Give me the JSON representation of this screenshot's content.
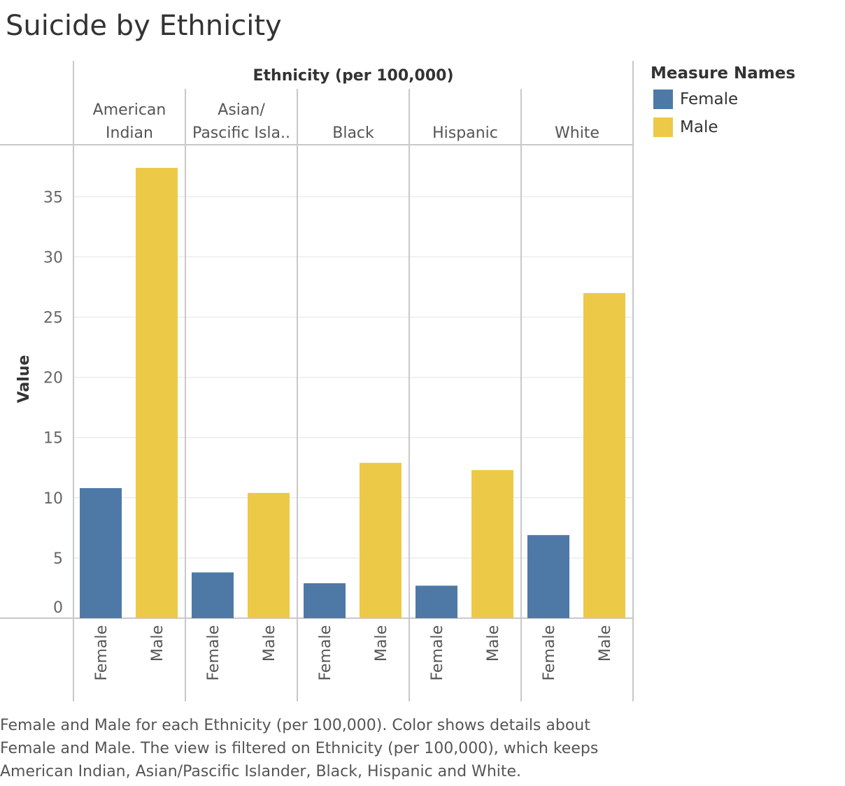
{
  "chart_data": {
    "type": "bar",
    "title": "Suicide by Ethnicity",
    "column_header": "Ethnicity (per 100,000)",
    "ylabel": "Value",
    "ylim": [
      0,
      38
    ],
    "yticks": [
      0,
      5,
      10,
      15,
      20,
      25,
      30,
      35
    ],
    "grid": true,
    "legend_placement": "top-right",
    "groups": [
      {
        "label_lines": [
          "American",
          "Indian"
        ]
      },
      {
        "label_lines": [
          "Asian/",
          "Pascific Isla.."
        ]
      },
      {
        "label_lines": [
          "Black"
        ]
      },
      {
        "label_lines": [
          "Hispanic"
        ]
      },
      {
        "label_lines": [
          "White"
        ]
      }
    ],
    "bar_labels": [
      "Female",
      "Male"
    ],
    "series": [
      {
        "name": "Female",
        "color": "#4e79a7",
        "values": [
          10.8,
          3.8,
          2.9,
          2.7,
          6.9
        ]
      },
      {
        "name": "Male",
        "color": "#edc948",
        "values": [
          37.4,
          10.4,
          12.9,
          12.3,
          27.0
        ]
      }
    ]
  },
  "legend": {
    "title": "Measure Names",
    "items": [
      {
        "label": "Female",
        "color": "#4e79a7"
      },
      {
        "label": "Male",
        "color": "#edc948"
      }
    ]
  },
  "caption": "Female and Male for each Ethnicity (per 100,000).  Color shows details about Female and Male. The view is filtered on Ethnicity (per 100,000), which keeps American Indian, Asian/Pascific Islander, Black, Hispanic and White."
}
